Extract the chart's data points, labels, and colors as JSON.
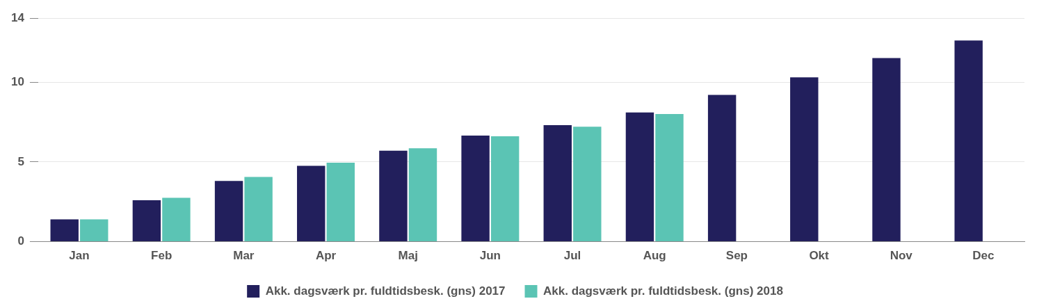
{
  "chart_data": {
    "type": "bar",
    "categories": [
      "Jan",
      "Feb",
      "Mar",
      "Apr",
      "Maj",
      "Jun",
      "Jul",
      "Aug",
      "Sep",
      "Okt",
      "Nov",
      "Dec"
    ],
    "series": [
      {
        "name": "Akk. dagsværk pr. fuldtidsbesk. (gns) 2017",
        "color": "#221f5c",
        "values": [
          1.4,
          2.6,
          3.8,
          4.75,
          5.7,
          6.65,
          7.3,
          8.1,
          9.2,
          10.3,
          11.5,
          12.6
        ]
      },
      {
        "name": "Akk. dagsværk pr. fuldtidsbesk. (gns) 2018",
        "color": "#5bc4b4",
        "values": [
          1.4,
          2.75,
          4.05,
          4.95,
          5.85,
          6.6,
          7.2,
          8.0,
          null,
          null,
          null,
          null
        ]
      }
    ],
    "ylim": [
      0,
      14
    ],
    "yticks": [
      0,
      5,
      10,
      14
    ],
    "grid": "y",
    "legend": "bottom"
  }
}
